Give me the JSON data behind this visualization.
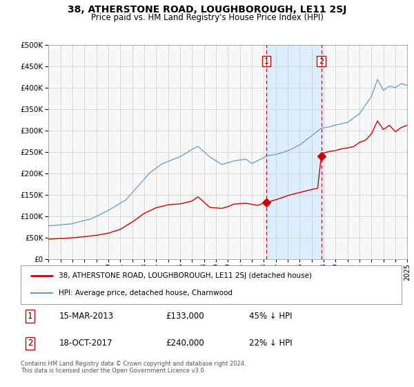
{
  "title": "38, ATHERSTONE ROAD, LOUGHBOROUGH, LE11 2SJ",
  "subtitle": "Price paid vs. HM Land Registry's House Price Index (HPI)",
  "legend_line1": "38, ATHERSTONE ROAD, LOUGHBOROUGH, LE11 2SJ (detached house)",
  "legend_line2": "HPI: Average price, detached house, Charnwood",
  "transaction1_date": "15-MAR-2013",
  "transaction1_price": 133000,
  "transaction1_label": "45% ↓ HPI",
  "transaction1_year": 2013.21,
  "transaction2_date": "18-OCT-2017",
  "transaction2_price": 240000,
  "transaction2_label": "22% ↓ HPI",
  "transaction2_year": 2017.8,
  "xmin": 1995,
  "xmax": 2025,
  "ymin": 0,
  "ymax": 500000,
  "yticks": [
    0,
    50000,
    100000,
    150000,
    200000,
    250000,
    300000,
    350000,
    400000,
    450000,
    500000
  ],
  "red_color": "#cc0000",
  "blue_color": "#6699cc",
  "shade_color": "#ddeeff",
  "grid_color": "#cccccc",
  "footer_text": "Contains HM Land Registry data © Crown copyright and database right 2024.\nThis data is licensed under the Open Government Licence v3.0.",
  "background_color": "#ffffff",
  "plot_bg_color": "#f8f8f8"
}
